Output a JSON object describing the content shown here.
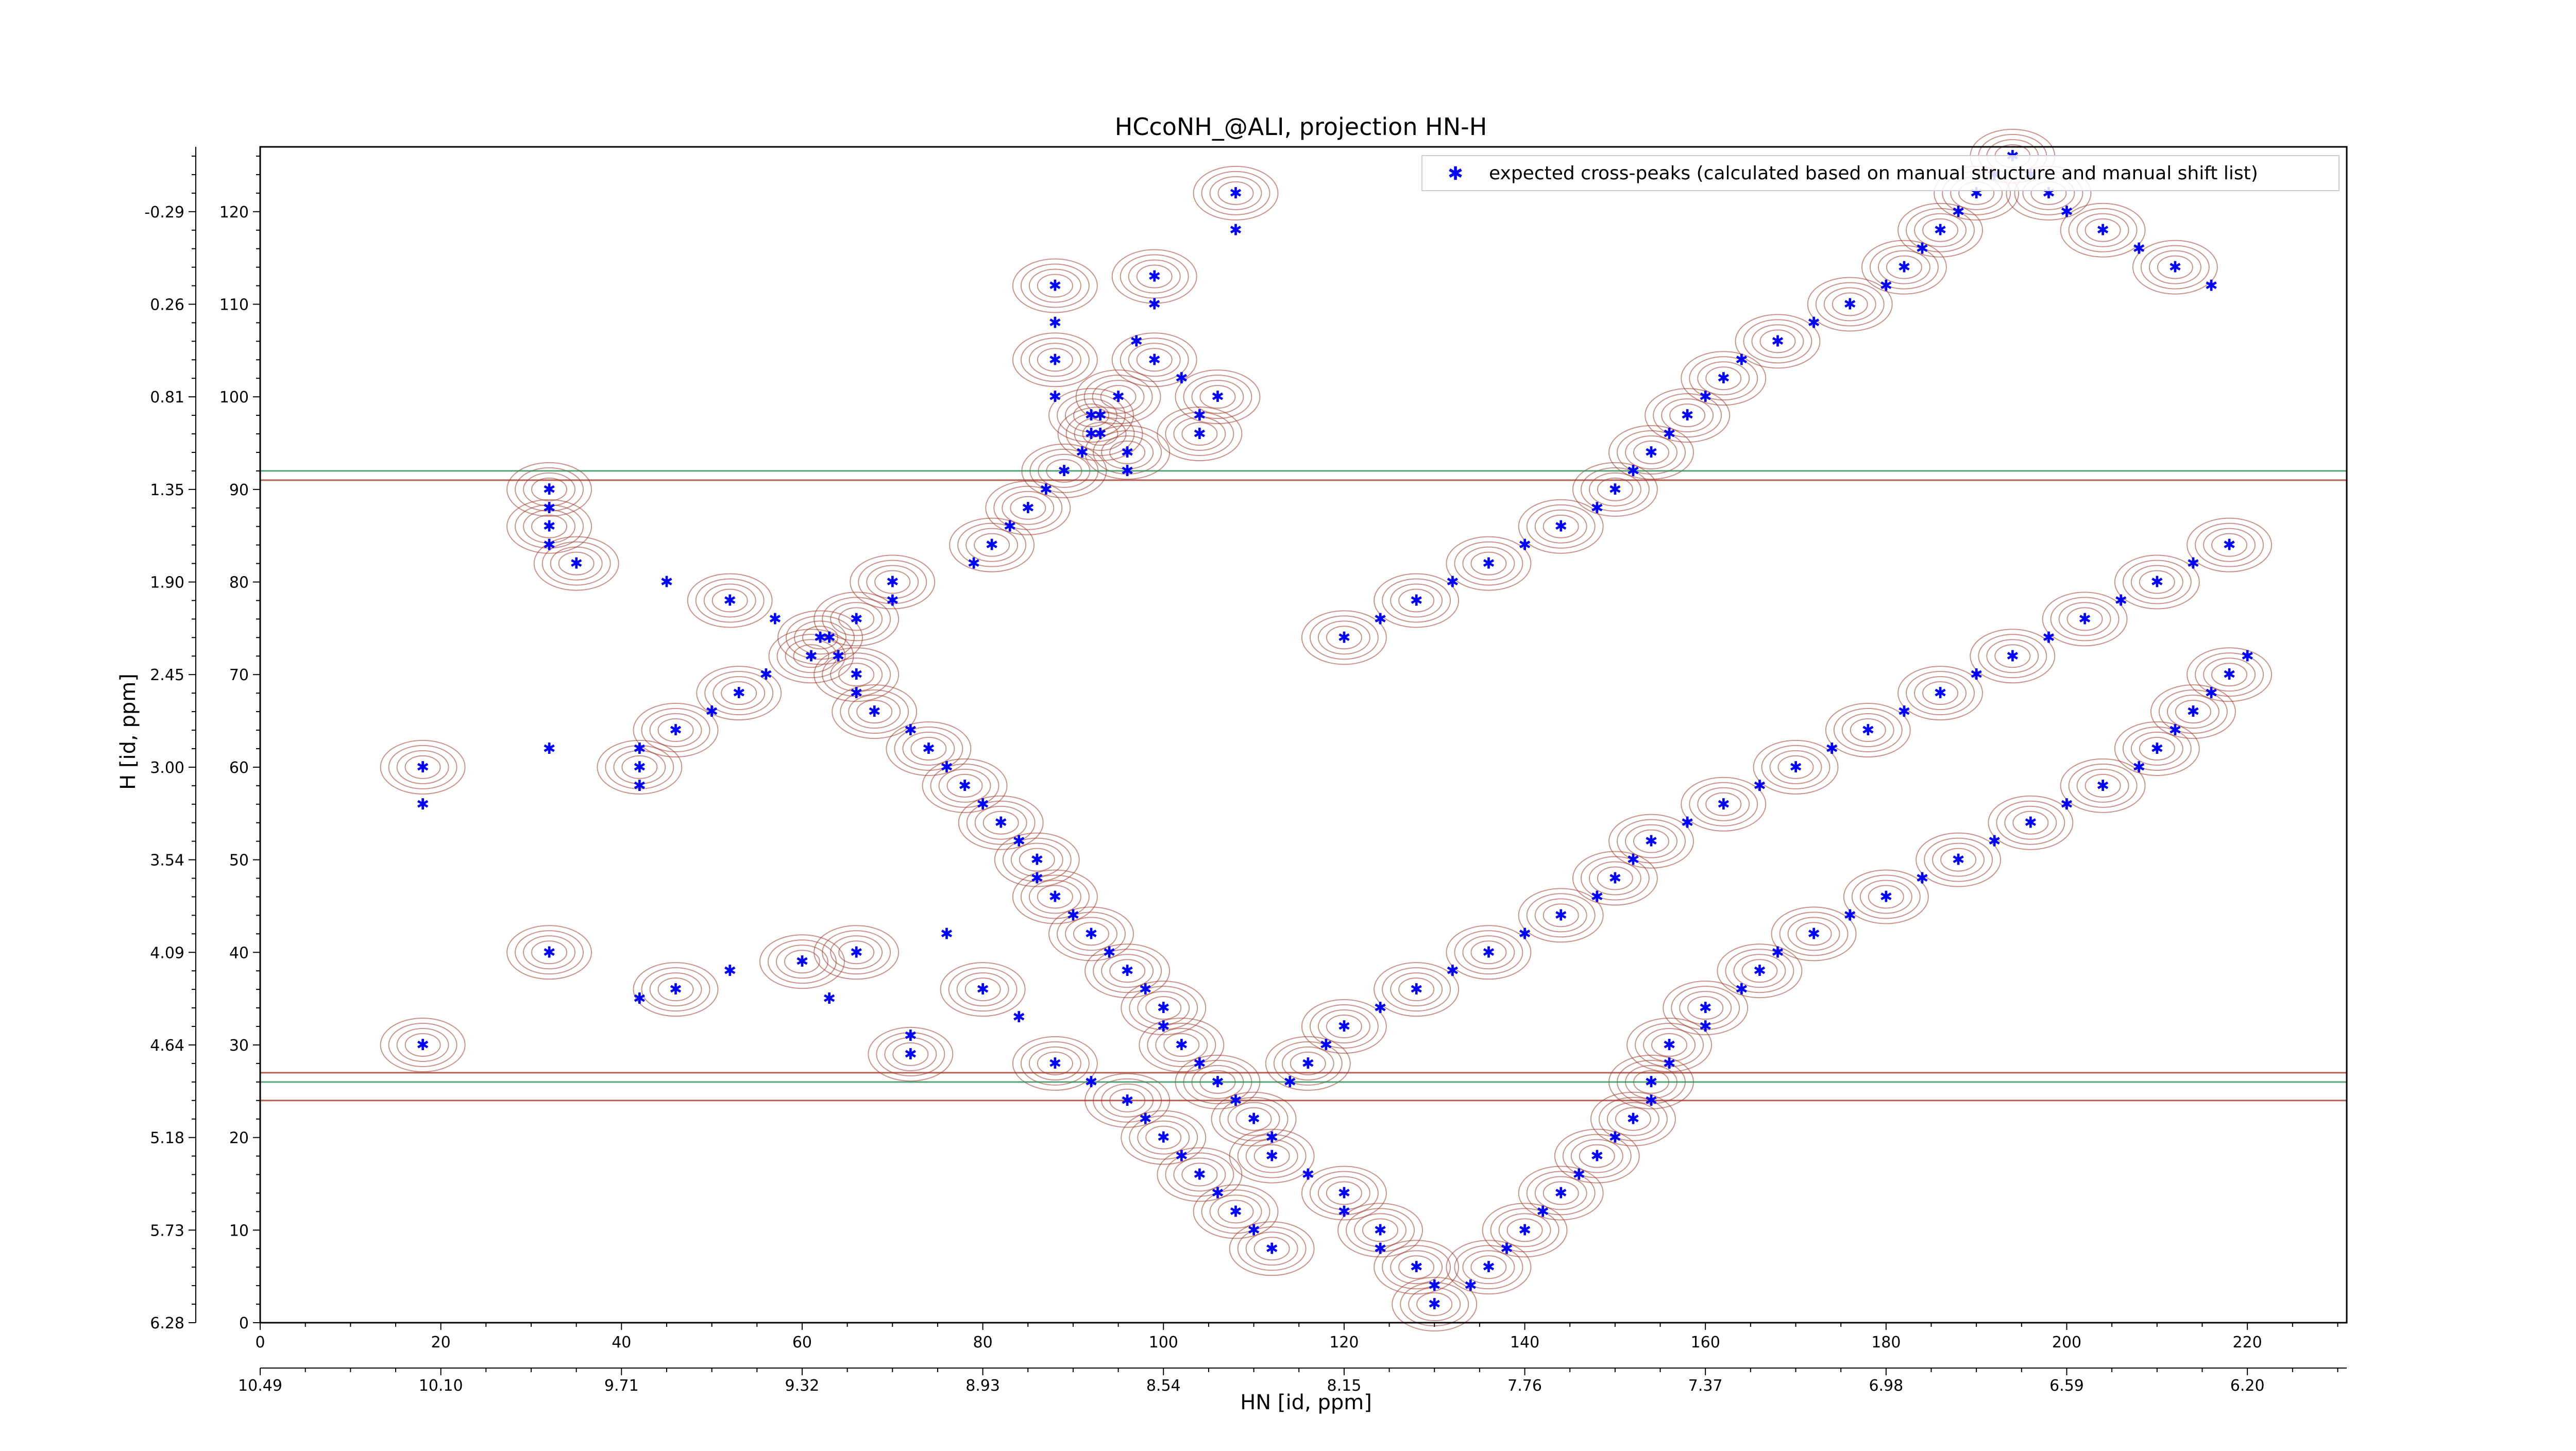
{
  "chart_data": {
    "type": "scatter",
    "title": "HCcoNH_@ALI, projection HN-H",
    "xlabel": "HN [id, ppm]",
    "ylabel": "H [id, ppm]",
    "xlim": [
      0,
      231
    ],
    "ylim": [
      0,
      127
    ],
    "x_index_ticks": [
      "0",
      "20",
      "40",
      "60",
      "80",
      "100",
      "120",
      "140",
      "160",
      "180",
      "200",
      "220"
    ],
    "x_index_tick_values": [
      0,
      20,
      40,
      60,
      80,
      100,
      120,
      140,
      160,
      180,
      200,
      220
    ],
    "x_ppm_ticks": [
      "10.49",
      "10.10",
      "9.71",
      "9.32",
      "8.93",
      "8.54",
      "8.15",
      "7.76",
      "7.37",
      "6.98",
      "6.59",
      "6.20"
    ],
    "y_index_ticks": [
      "0",
      "10",
      "20",
      "30",
      "40",
      "50",
      "60",
      "70",
      "80",
      "90",
      "100",
      "110",
      "120"
    ],
    "y_index_tick_values": [
      0,
      10,
      20,
      30,
      40,
      50,
      60,
      70,
      80,
      90,
      100,
      110,
      120
    ],
    "y_ppm_ticks": [
      "6.28",
      "5.73",
      "5.18",
      "4.64",
      "4.09",
      "3.54",
      "3.00",
      "2.45",
      "1.90",
      "1.35",
      "0.81",
      "0.26",
      "-0.29"
    ],
    "legend_position": "top-right",
    "colors": {
      "points": "#0000ff",
      "contour_positive": "#a0382a",
      "contour_negative": "#2e8b57",
      "axes": "#000000"
    },
    "series": [
      {
        "name": "expected cross-peaks (calculated based on manual structure and manual shift list)",
        "x": [
          108,
          108,
          99,
          99,
          88,
          88,
          88,
          88,
          92,
          92,
          96,
          96,
          104,
          104,
          106,
          102,
          99,
          97,
          95,
          93,
          93,
          91,
          89,
          87,
          85,
          83,
          81,
          79,
          70,
          70,
          66,
          63,
          61,
          56,
          53,
          50,
          46,
          42,
          42,
          42,
          32,
          32,
          32,
          32,
          35,
          45,
          52,
          57,
          62,
          64,
          66,
          66,
          68,
          72,
          74,
          76,
          78,
          80,
          82,
          84,
          86,
          86,
          88,
          90,
          92,
          94,
          96,
          98,
          100,
          100,
          102,
          104,
          106,
          108,
          110,
          112,
          112,
          116,
          120,
          120,
          124,
          124,
          128,
          130,
          130,
          134,
          136,
          138,
          140,
          142,
          144,
          146,
          148,
          150,
          152,
          154,
          154,
          156,
          156,
          160,
          160,
          164,
          166,
          168,
          172,
          176,
          180,
          184,
          188,
          192,
          196,
          200,
          204,
          208,
          210,
          212,
          214,
          216,
          218,
          220,
          120,
          124,
          128,
          132,
          136,
          140,
          144,
          148,
          150,
          152,
          154,
          156,
          158,
          160,
          162,
          164,
          168,
          172,
          176,
          180,
          182,
          184,
          186,
          188,
          190,
          192,
          194,
          196,
          198,
          200,
          204,
          208,
          212,
          216,
          18,
          18,
          18,
          32,
          32,
          42,
          46,
          52,
          60,
          63,
          66,
          72,
          72,
          76,
          80,
          84,
          88,
          92,
          96,
          98,
          100,
          102,
          104,
          106,
          108,
          110,
          112,
          114,
          116,
          118,
          120,
          124,
          128,
          132,
          136,
          140,
          144,
          148,
          150,
          152,
          154,
          158,
          162,
          166,
          170,
          174,
          178,
          182,
          186,
          190,
          194,
          198,
          202,
          206,
          210,
          214,
          218
        ],
        "y": [
          122,
          118,
          113,
          110,
          112,
          108,
          104,
          100,
          98,
          96,
          94,
          92,
          96,
          98,
          100,
          102,
          104,
          106,
          100,
          98,
          96,
          94,
          92,
          90,
          88,
          86,
          84,
          82,
          80,
          78,
          76,
          74,
          72,
          70,
          68,
          66,
          64,
          62,
          60,
          58,
          90,
          88,
          86,
          84,
          82,
          80,
          78,
          76,
          74,
          72,
          70,
          68,
          66,
          64,
          62,
          60,
          58,
          56,
          54,
          52,
          50,
          48,
          46,
          44,
          42,
          40,
          38,
          36,
          34,
          32,
          30,
          28,
          26,
          24,
          22,
          20,
          18,
          16,
          14,
          12,
          10,
          8,
          6,
          4,
          2,
          4,
          6,
          8,
          10,
          12,
          14,
          16,
          18,
          20,
          22,
          24,
          26,
          28,
          30,
          32,
          34,
          36,
          38,
          40,
          42,
          44,
          46,
          48,
          50,
          52,
          54,
          56,
          58,
          60,
          62,
          64,
          66,
          68,
          70,
          72,
          74,
          76,
          78,
          80,
          82,
          84,
          86,
          88,
          90,
          92,
          94,
          96,
          98,
          100,
          102,
          104,
          106,
          108,
          110,
          112,
          114,
          116,
          118,
          120,
          122,
          124,
          126,
          124,
          122,
          120,
          118,
          116,
          114,
          112,
          60,
          56,
          30,
          62,
          40,
          35,
          36,
          38,
          39,
          35,
          40,
          31,
          29,
          42,
          36,
          33,
          28,
          26,
          24,
          22,
          20,
          18,
          16,
          14,
          12,
          10,
          8,
          26,
          28,
          30,
          32,
          34,
          36,
          38,
          40,
          42,
          44,
          46,
          48,
          50,
          52,
          54,
          56,
          58,
          60,
          62,
          64,
          66,
          68,
          70,
          72,
          74,
          76,
          78,
          80,
          82,
          84
        ]
      }
    ]
  }
}
